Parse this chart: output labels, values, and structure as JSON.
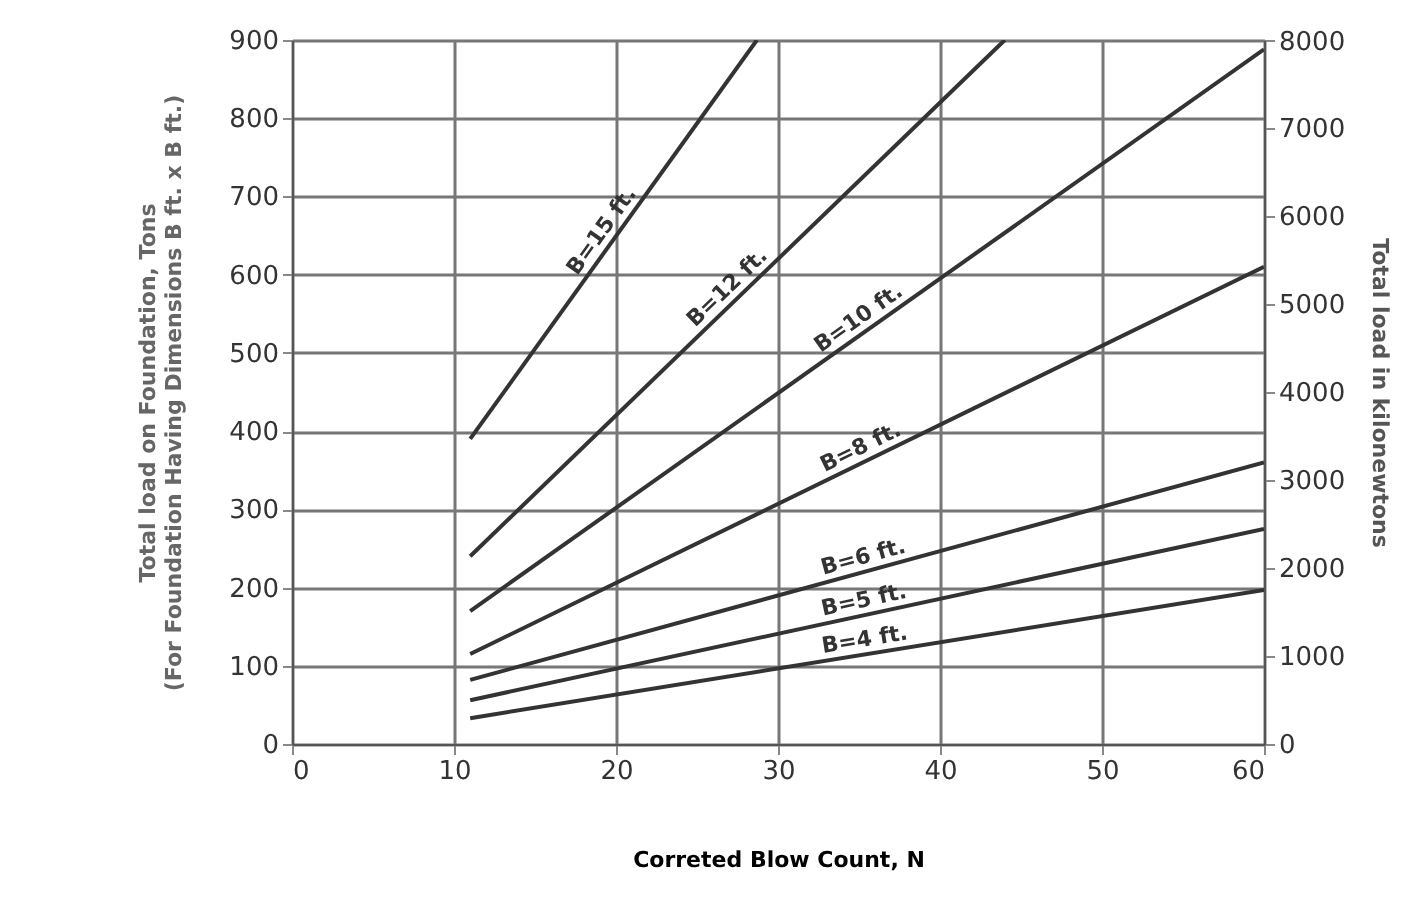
{
  "chart_data": {
    "type": "line",
    "xlabel": "Correted Blow Count, N",
    "ylabel": "Total load on Foundation, Tons\n(For Foundation Having Dimensions B ft. x B ft.)",
    "y2label": "Total load in kilonewtons",
    "xlim": [
      0,
      60
    ],
    "xticks": [
      0,
      10,
      20,
      30,
      40,
      50,
      60
    ],
    "ylim": [
      0,
      900
    ],
    "yticks": [
      0,
      100,
      200,
      300,
      400,
      500,
      600,
      700,
      800,
      900
    ],
    "y2lim": [
      0,
      8006
    ],
    "y2ticks": [
      0,
      1000,
      2000,
      3000,
      4000,
      5000,
      6000,
      7000,
      8000
    ],
    "grid": true,
    "line_style": "solid",
    "series": [
      {
        "name": "B=15 ft.",
        "color": "#333333",
        "x": [
          11,
          28.7
        ],
        "values": [
          390,
          900
        ]
      },
      {
        "name": "B=12 ft.",
        "color": "#333333",
        "x": [
          11,
          44
        ],
        "values": [
          240,
          900
        ]
      },
      {
        "name": "B=10 ft.",
        "color": "#333333",
        "x": [
          11,
          60
        ],
        "values": [
          170,
          888
        ]
      },
      {
        "name": "B=8 ft.",
        "color": "#333333",
        "x": [
          11,
          60
        ],
        "values": [
          115,
          610
        ]
      },
      {
        "name": "B=6 ft.",
        "color": "#333333",
        "x": [
          11,
          60
        ],
        "values": [
          82,
          360
        ]
      },
      {
        "name": "B=5 ft.",
        "color": "#333333",
        "x": [
          11,
          60
        ],
        "values": [
          56,
          275
        ]
      },
      {
        "name": "B=4 ft.",
        "color": "#333333",
        "x": [
          11,
          60
        ],
        "values": [
          33,
          197
        ]
      }
    ]
  }
}
